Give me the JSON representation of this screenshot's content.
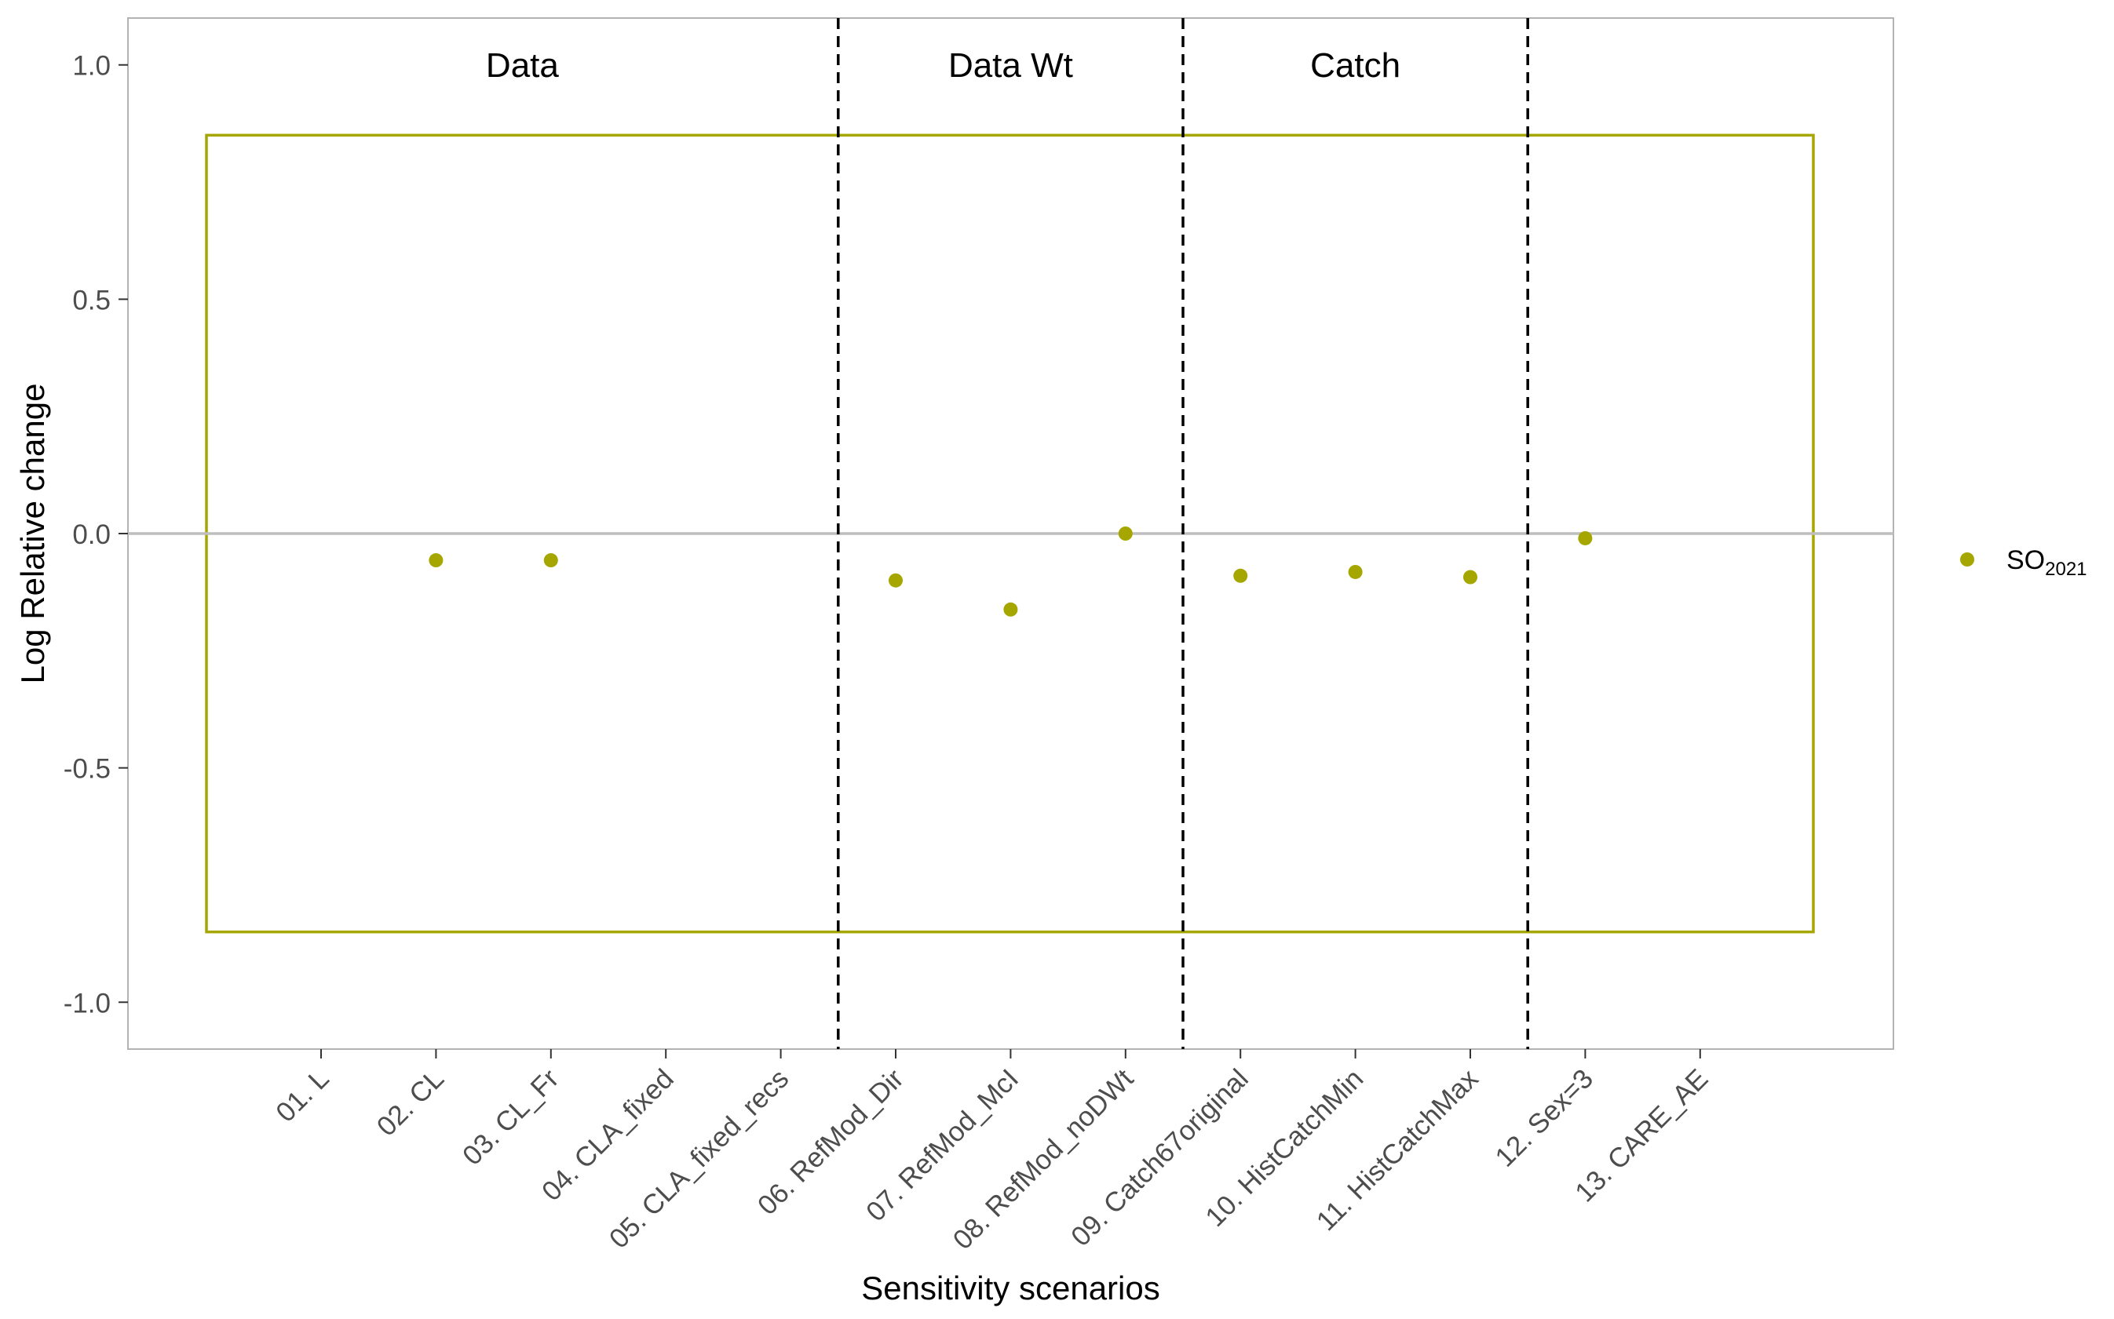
{
  "chart_data": {
    "type": "scatter",
    "title": "",
    "xlabel": "Sensitivity scenarios",
    "ylabel": "Log Relative change",
    "ylim": [
      -1.1,
      1.1
    ],
    "yticks": [
      "1.0",
      "0.5",
      "0.0",
      "-0.5",
      "-1.0"
    ],
    "ytick_values": [
      1.0,
      0.5,
      0.0,
      -0.5,
      -1.0
    ],
    "categories": [
      "01. L",
      "02. CL",
      "03. CL_Fr",
      "04. CLA_fixed",
      "05. CLA_fixed_recs",
      "06. RefMod_Dir",
      "07. RefMod_McI",
      "08. RefMod_noDWt",
      "09. Catch67original",
      "10. HistCatchMin",
      "11. HistCatchMax",
      "12. Sex=3",
      "13. CARE_AE"
    ],
    "series": [
      {
        "name": "SO",
        "name_subscript": "2021",
        "color": "#a6a600",
        "values": [
          null,
          -0.057,
          -0.057,
          null,
          null,
          -0.1,
          -0.162,
          0.0,
          -0.09,
          -0.082,
          -0.093,
          -0.01,
          null
        ]
      }
    ],
    "reference_line": 0.0,
    "threshold_box": {
      "ymin": -0.85,
      "ymax": 0.85
    },
    "sections": [
      {
        "label": "Data",
        "start_index": 0,
        "end_index": 4
      },
      {
        "label": "Data Wt",
        "start_index": 5,
        "end_index": 7
      },
      {
        "label": "Catch",
        "start_index": 8,
        "end_index": 10
      },
      {
        "label": "",
        "start_index": 11,
        "end_index": 12
      }
    ],
    "grid": false,
    "legend_position": "right",
    "colors": {
      "series": "#a6a600",
      "zero_line": "#bebebe",
      "panel_border": "#b3b3b3",
      "divider": "#000000"
    }
  }
}
